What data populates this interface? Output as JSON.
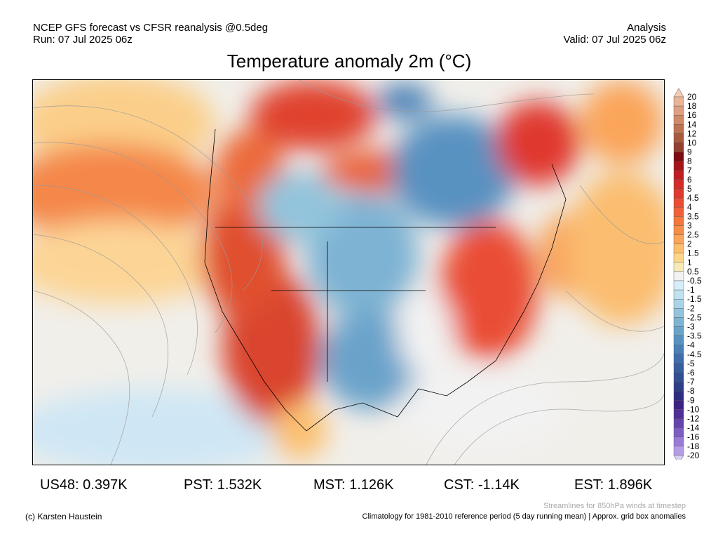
{
  "header": {
    "model_line": "NCEP GFS forecast vs CFSR reanalysis @0.5deg",
    "run_line": "Run: 07 Jul 2025 06z",
    "type_line": "Analysis",
    "valid_line": "Valid: 07 Jul 2025 06z"
  },
  "title": "Temperature anomaly 2m (°C)",
  "regional_stats": [
    {
      "label": "US48: 0.397K"
    },
    {
      "label": "PST: 1.532K"
    },
    {
      "label": "MST: 1.126K"
    },
    {
      "label": "CST: -1.14K"
    },
    {
      "label": "EST: 1.896K"
    }
  ],
  "footer": {
    "credit": "(c) Karsten Haustein",
    "streamlines_note": "Streamlines for 850hPa winds at timestep",
    "climatology_note": "Climatology for 1981-2010 reference period (5 day running mean) | Approx. grid box anomalies"
  },
  "colorbar": {
    "labels": [
      "20",
      "18",
      "16",
      "14",
      "12",
      "10",
      "9",
      "8",
      "7",
      "6",
      "5",
      "4.5",
      "4",
      "3.5",
      "3",
      "2.5",
      "2",
      "1.5",
      "1",
      "0.5",
      "-0.5",
      "-1",
      "-1.5",
      "-2",
      "-2.5",
      "-3",
      "-3.5",
      "-4",
      "-4.5",
      "-5",
      "-6",
      "-7",
      "-8",
      "-9",
      "-10",
      "-12",
      "-14",
      "-16",
      "-18",
      "-20"
    ],
    "top_extend_color": "#f5cdb4",
    "bottom_extend_color": "#d8cff8",
    "colors": [
      "#eab596",
      "#dea080",
      "#cf8a68",
      "#bd7252",
      "#a85a3f",
      "#93402f",
      "#7b0c10",
      "#a41418",
      "#c11e22",
      "#d42b2a",
      "#e0392f",
      "#ea4d34",
      "#ef6239",
      "#f4773e",
      "#f78d48",
      "#fba55a",
      "#fcbf6e",
      "#fdd68a",
      "#f7eab8",
      "#f2f2f2",
      "#d6eefa",
      "#bfe1f0",
      "#a9d3e6",
      "#92c4dc",
      "#7eb3d3",
      "#6aa3ca",
      "#5892c1",
      "#4a80b6",
      "#3f6eaa",
      "#385e9e",
      "#324f92",
      "#2d4087",
      "#2e2d80",
      "#3b2284",
      "#4f2f98",
      "#6444ad",
      "#7d5dc4",
      "#987bd7",
      "#b49de6"
    ]
  }
}
